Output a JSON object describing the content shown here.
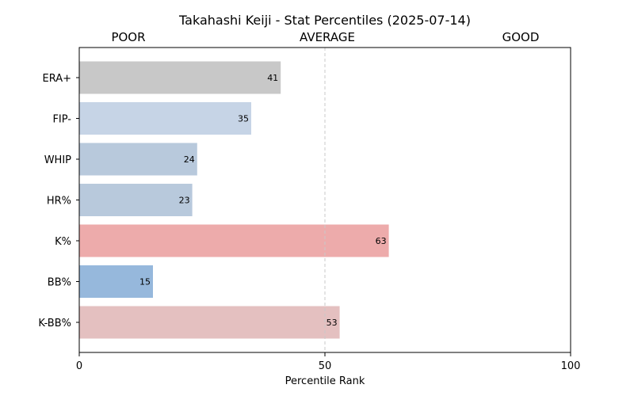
{
  "chart_data": {
    "type": "bar",
    "orientation": "horizontal",
    "title": "Takahashi Keiji - Stat Percentiles (2025-07-14)",
    "xlabel": "Percentile Rank",
    "ylabel": "",
    "xlim": [
      0,
      100
    ],
    "xticks": [
      "0",
      "50",
      "100"
    ],
    "grid": false,
    "reference_line": {
      "x": 50,
      "style": "dashed",
      "color": "#c8c8c8"
    },
    "bands": [
      {
        "label": "POOR",
        "position": "left"
      },
      {
        "label": "AVERAGE",
        "position": "center"
      },
      {
        "label": "GOOD",
        "position": "right"
      }
    ],
    "categories": [
      "ERA+",
      "FIP-",
      "WHIP",
      "HR%",
      "K%",
      "BB%",
      "K-BB%"
    ],
    "values": [
      41,
      35,
      24,
      23,
      63,
      15,
      53
    ],
    "value_labels": [
      "41",
      "35",
      "24",
      "23",
      "63",
      "15",
      "53"
    ],
    "colors": [
      "#c8c8c8",
      "#c6d4e6",
      "#b8c9dc",
      "#b8c9dc",
      "#edabab",
      "#96b8dc",
      "#e4c0c0"
    ]
  }
}
